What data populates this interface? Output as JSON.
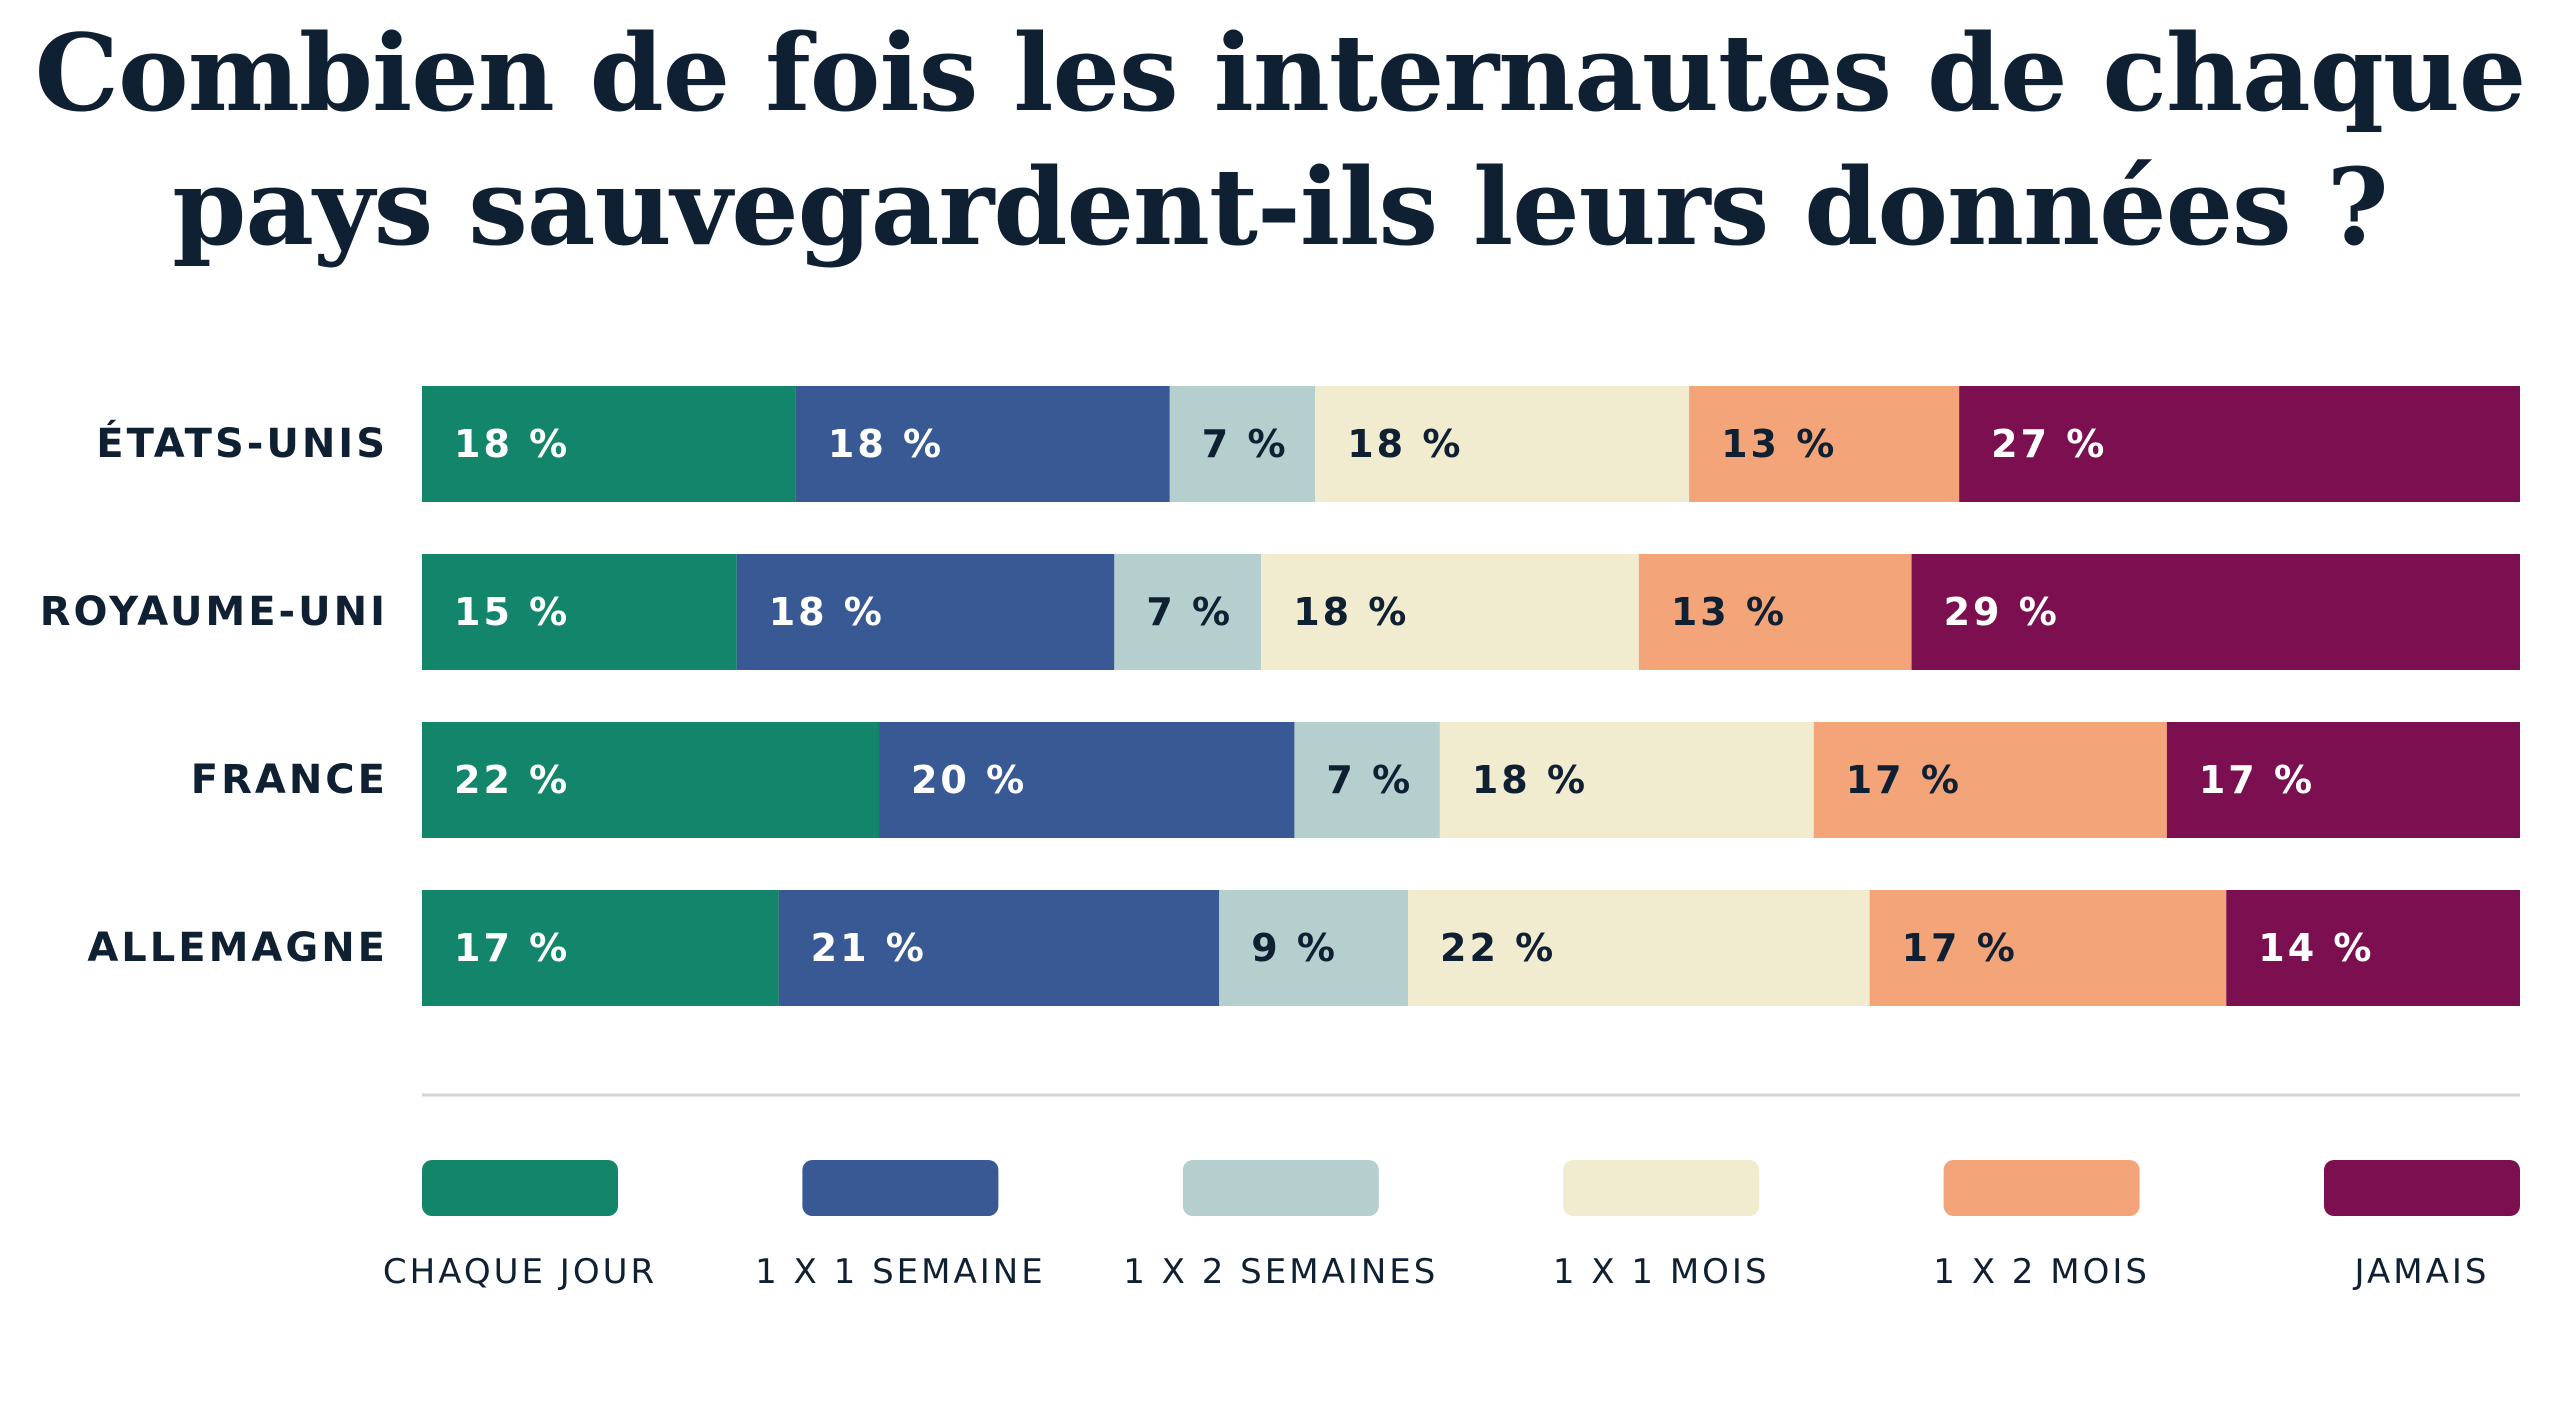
{
  "chart_data": {
    "type": "bar",
    "orientation": "horizontal",
    "stacked": true,
    "title": [
      "Combien de fois les internautes de chaque",
      "pays sauvegardent-ils leurs données ?"
    ],
    "categories": [
      "ÉTATS-UNIS",
      "ROYAUME-UNI",
      "FRANCE",
      "ALLEMAGNE"
    ],
    "series": [
      {
        "name": "CHAQUE JOUR",
        "color": "#13856a",
        "label_color": "#ffffff",
        "values": [
          18,
          15,
          22,
          17
        ],
        "labels": [
          "18 %",
          "15 %",
          "22 %",
          "17 %"
        ]
      },
      {
        "name": "1 X 1 SEMAINE",
        "color": "#385994",
        "label_color": "#ffffff",
        "values": [
          18,
          18,
          20,
          21
        ],
        "labels": [
          "18 %",
          "18 %",
          "20 %",
          "21 %"
        ]
      },
      {
        "name": "1 X 2 SEMAINES",
        "color": "#b5cfcf",
        "label_color": "#0f2033",
        "values": [
          7,
          7,
          7,
          9
        ],
        "labels": [
          "7 %",
          "7 %",
          "7 %",
          "9 %"
        ]
      },
      {
        "name": "1 X 1 MOIS",
        "color": "#f1ebd0",
        "label_color": "#0f2033",
        "values": [
          18,
          18,
          18,
          22
        ],
        "labels": [
          "18 %",
          "18 %",
          "18 %",
          "22 %"
        ]
      },
      {
        "name": "1 X 2 MOIS",
        "color": "#f3a479",
        "label_color": "#0f2033",
        "values": [
          13,
          13,
          17,
          17
        ],
        "labels": [
          "13 %",
          "13 %",
          "17 %",
          "17 %"
        ]
      },
      {
        "name": "JAMAIS",
        "color": "#7c0f4f",
        "label_color": "#ffffff",
        "values": [
          27,
          29,
          17,
          14
        ],
        "labels": [
          "27 %",
          "29 %",
          "17 %",
          "14 %"
        ]
      }
    ],
    "xlim": [
      0,
      100
    ],
    "grid": false,
    "legend_position": "bottom"
  }
}
